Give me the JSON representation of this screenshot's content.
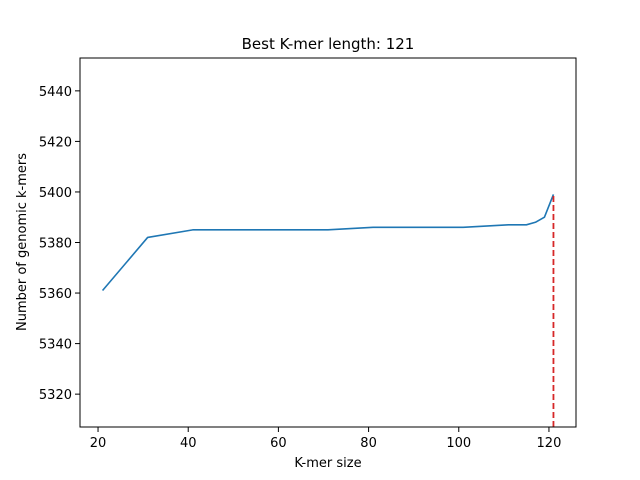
{
  "chart_data": {
    "type": "line",
    "title": "Best K-mer length: 121",
    "xlabel": "K-mer size",
    "ylabel": "Number of genomic k-mers",
    "xlim": [
      16,
      126
    ],
    "ylim": [
      5307,
      5453
    ],
    "xticks": [
      20,
      40,
      60,
      80,
      100,
      120
    ],
    "yticks": [
      5320,
      5340,
      5360,
      5380,
      5400,
      5420,
      5440
    ],
    "grid": false,
    "series": [
      {
        "color": "#1f77b4",
        "x": [
          21,
          31,
          41,
          51,
          61,
          71,
          81,
          91,
          101,
          111,
          115,
          117,
          119,
          121
        ],
        "y": [
          5361,
          5382,
          5385,
          5385,
          5385,
          5385,
          5386,
          5386,
          5386,
          5387,
          5387,
          5388,
          5390,
          5399
        ]
      }
    ],
    "best_marker": {
      "x": 121,
      "color": "#d62728",
      "style": "dashed"
    }
  }
}
